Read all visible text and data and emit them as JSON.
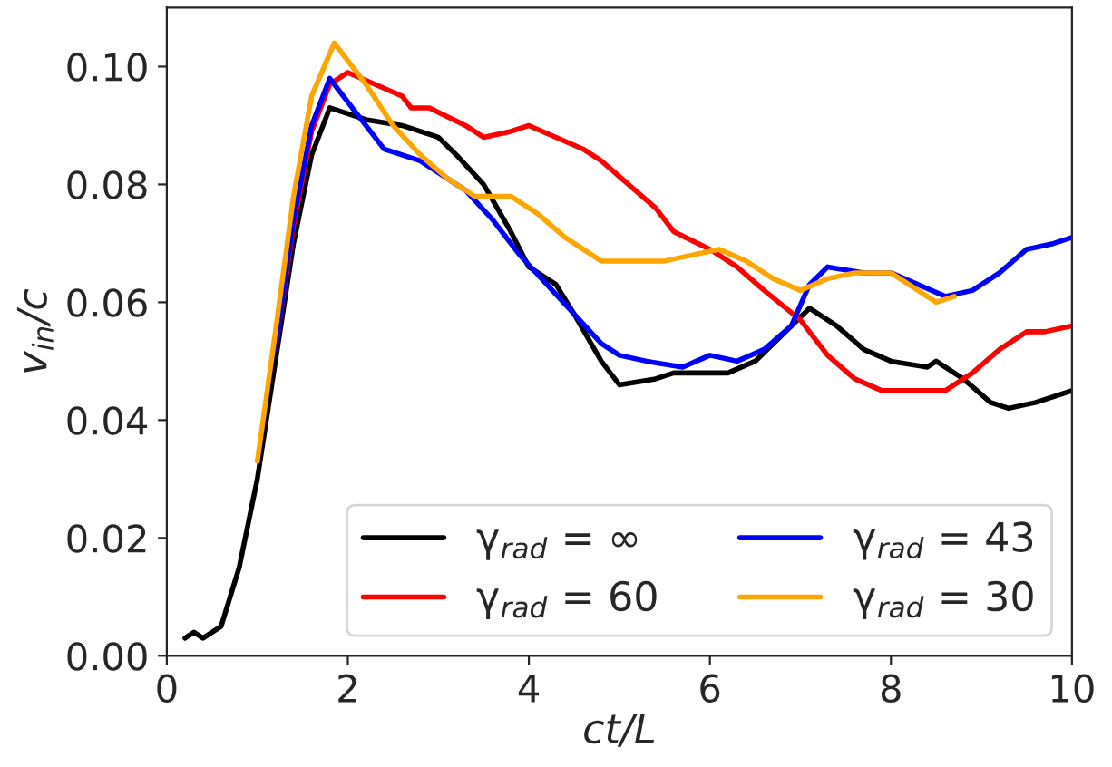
{
  "chart_data": {
    "type": "line",
    "xlabel": "ct/L",
    "ylabel": "v$_{in}$/c",
    "xlim": [
      0,
      10
    ],
    "ylim": [
      0,
      0.11
    ],
    "xticks": [
      0,
      2,
      4,
      6,
      8,
      10
    ],
    "yticks": [
      {
        "value": 0,
        "label": "0.00"
      },
      {
        "value": 0.02,
        "label": "0.02"
      },
      {
        "value": 0.04,
        "label": "0.04"
      },
      {
        "value": 0.06,
        "label": "0.06"
      },
      {
        "value": 0.08,
        "label": "0.08"
      },
      {
        "value": 0.1,
        "label": "0.10"
      }
    ],
    "legend": "bottom right",
    "grid": false,
    "line_style": "solid",
    "marker": "none",
    "series": [
      {
        "name": "γ$_{rad}$ = ∞",
        "color": "#000000",
        "x": [
          0.2,
          0.3,
          0.4,
          0.6,
          0.8,
          1.0,
          1.2,
          1.4,
          1.6,
          1.8,
          2.2,
          2.6,
          3.0,
          3.2,
          3.5,
          3.8,
          4.0,
          4.3,
          4.5,
          4.8,
          5.0,
          5.4,
          5.6,
          6.2,
          6.5,
          6.9,
          7.1,
          7.4,
          7.7,
          8.0,
          8.4,
          8.5,
          8.8,
          9.1,
          9.3,
          9.6,
          10
        ],
        "values": [
          0.003,
          0.004,
          0.003,
          0.005,
          0.015,
          0.03,
          0.05,
          0.07,
          0.085,
          0.093,
          0.091,
          0.09,
          0.088,
          0.085,
          0.08,
          0.072,
          0.066,
          0.063,
          0.058,
          0.05,
          0.046,
          0.047,
          0.048,
          0.048,
          0.05,
          0.056,
          0.059,
          0.056,
          0.052,
          0.05,
          0.049,
          0.05,
          0.047,
          0.043,
          0.042,
          0.043,
          0.045
        ]
      },
      {
        "name": "γ$_{rad}$ = 60",
        "color": "#ff0000",
        "x": [
          1.2,
          1.4,
          1.6,
          1.8,
          2.0,
          2.6,
          2.7,
          2.9,
          3.3,
          3.5,
          3.8,
          4.0,
          4.3,
          4.6,
          4.8,
          5.1,
          5.4,
          5.6,
          6.0,
          6.3,
          6.6,
          7.0,
          7.3,
          7.6,
          7.9,
          8.3,
          8.6,
          8.9,
          9.2,
          9.5,
          9.7,
          10
        ],
        "values": [
          0.052,
          0.073,
          0.089,
          0.097,
          0.099,
          0.095,
          0.093,
          0.093,
          0.09,
          0.088,
          0.089,
          0.09,
          0.088,
          0.086,
          0.084,
          0.08,
          0.076,
          0.072,
          0.069,
          0.066,
          0.062,
          0.057,
          0.051,
          0.047,
          0.045,
          0.045,
          0.045,
          0.048,
          0.052,
          0.055,
          0.055,
          0.056
        ]
      },
      {
        "name": "γ$_{rad}$ = 43",
        "color": "#0000ff",
        "x": [
          1.2,
          1.4,
          1.6,
          1.8,
          2.1,
          2.4,
          2.8,
          3.0,
          3.3,
          3.6,
          3.9,
          4.2,
          4.5,
          4.8,
          5.0,
          5.3,
          5.7,
          6.0,
          6.3,
          6.6,
          6.9,
          7.1,
          7.3,
          7.7,
          8.0,
          8.3,
          8.6,
          8.9,
          9.2,
          9.5,
          9.8,
          10
        ],
        "values": [
          0.052,
          0.074,
          0.09,
          0.098,
          0.092,
          0.086,
          0.084,
          0.082,
          0.079,
          0.074,
          0.068,
          0.063,
          0.058,
          0.053,
          0.051,
          0.05,
          0.049,
          0.051,
          0.05,
          0.052,
          0.056,
          0.063,
          0.066,
          0.065,
          0.065,
          0.063,
          0.061,
          0.062,
          0.065,
          0.069,
          0.07,
          0.071
        ]
      },
      {
        "name": "γ$_{rad}$ = 30",
        "color": "#ffa500",
        "x": [
          1.0,
          1.2,
          1.4,
          1.6,
          1.85,
          2.2,
          2.5,
          2.8,
          3.1,
          3.4,
          3.8,
          4.1,
          4.4,
          4.8,
          5.2,
          5.5,
          5.8,
          6.1,
          6.4,
          6.7,
          7.0,
          7.3,
          7.6,
          8.0,
          8.3,
          8.5,
          8.7
        ],
        "values": [
          0.033,
          0.055,
          0.078,
          0.095,
          0.104,
          0.097,
          0.09,
          0.085,
          0.081,
          0.078,
          0.078,
          0.075,
          0.071,
          0.067,
          0.067,
          0.067,
          0.068,
          0.069,
          0.067,
          0.064,
          0.062,
          0.064,
          0.065,
          0.065,
          0.062,
          0.06,
          0.061
        ]
      }
    ]
  }
}
